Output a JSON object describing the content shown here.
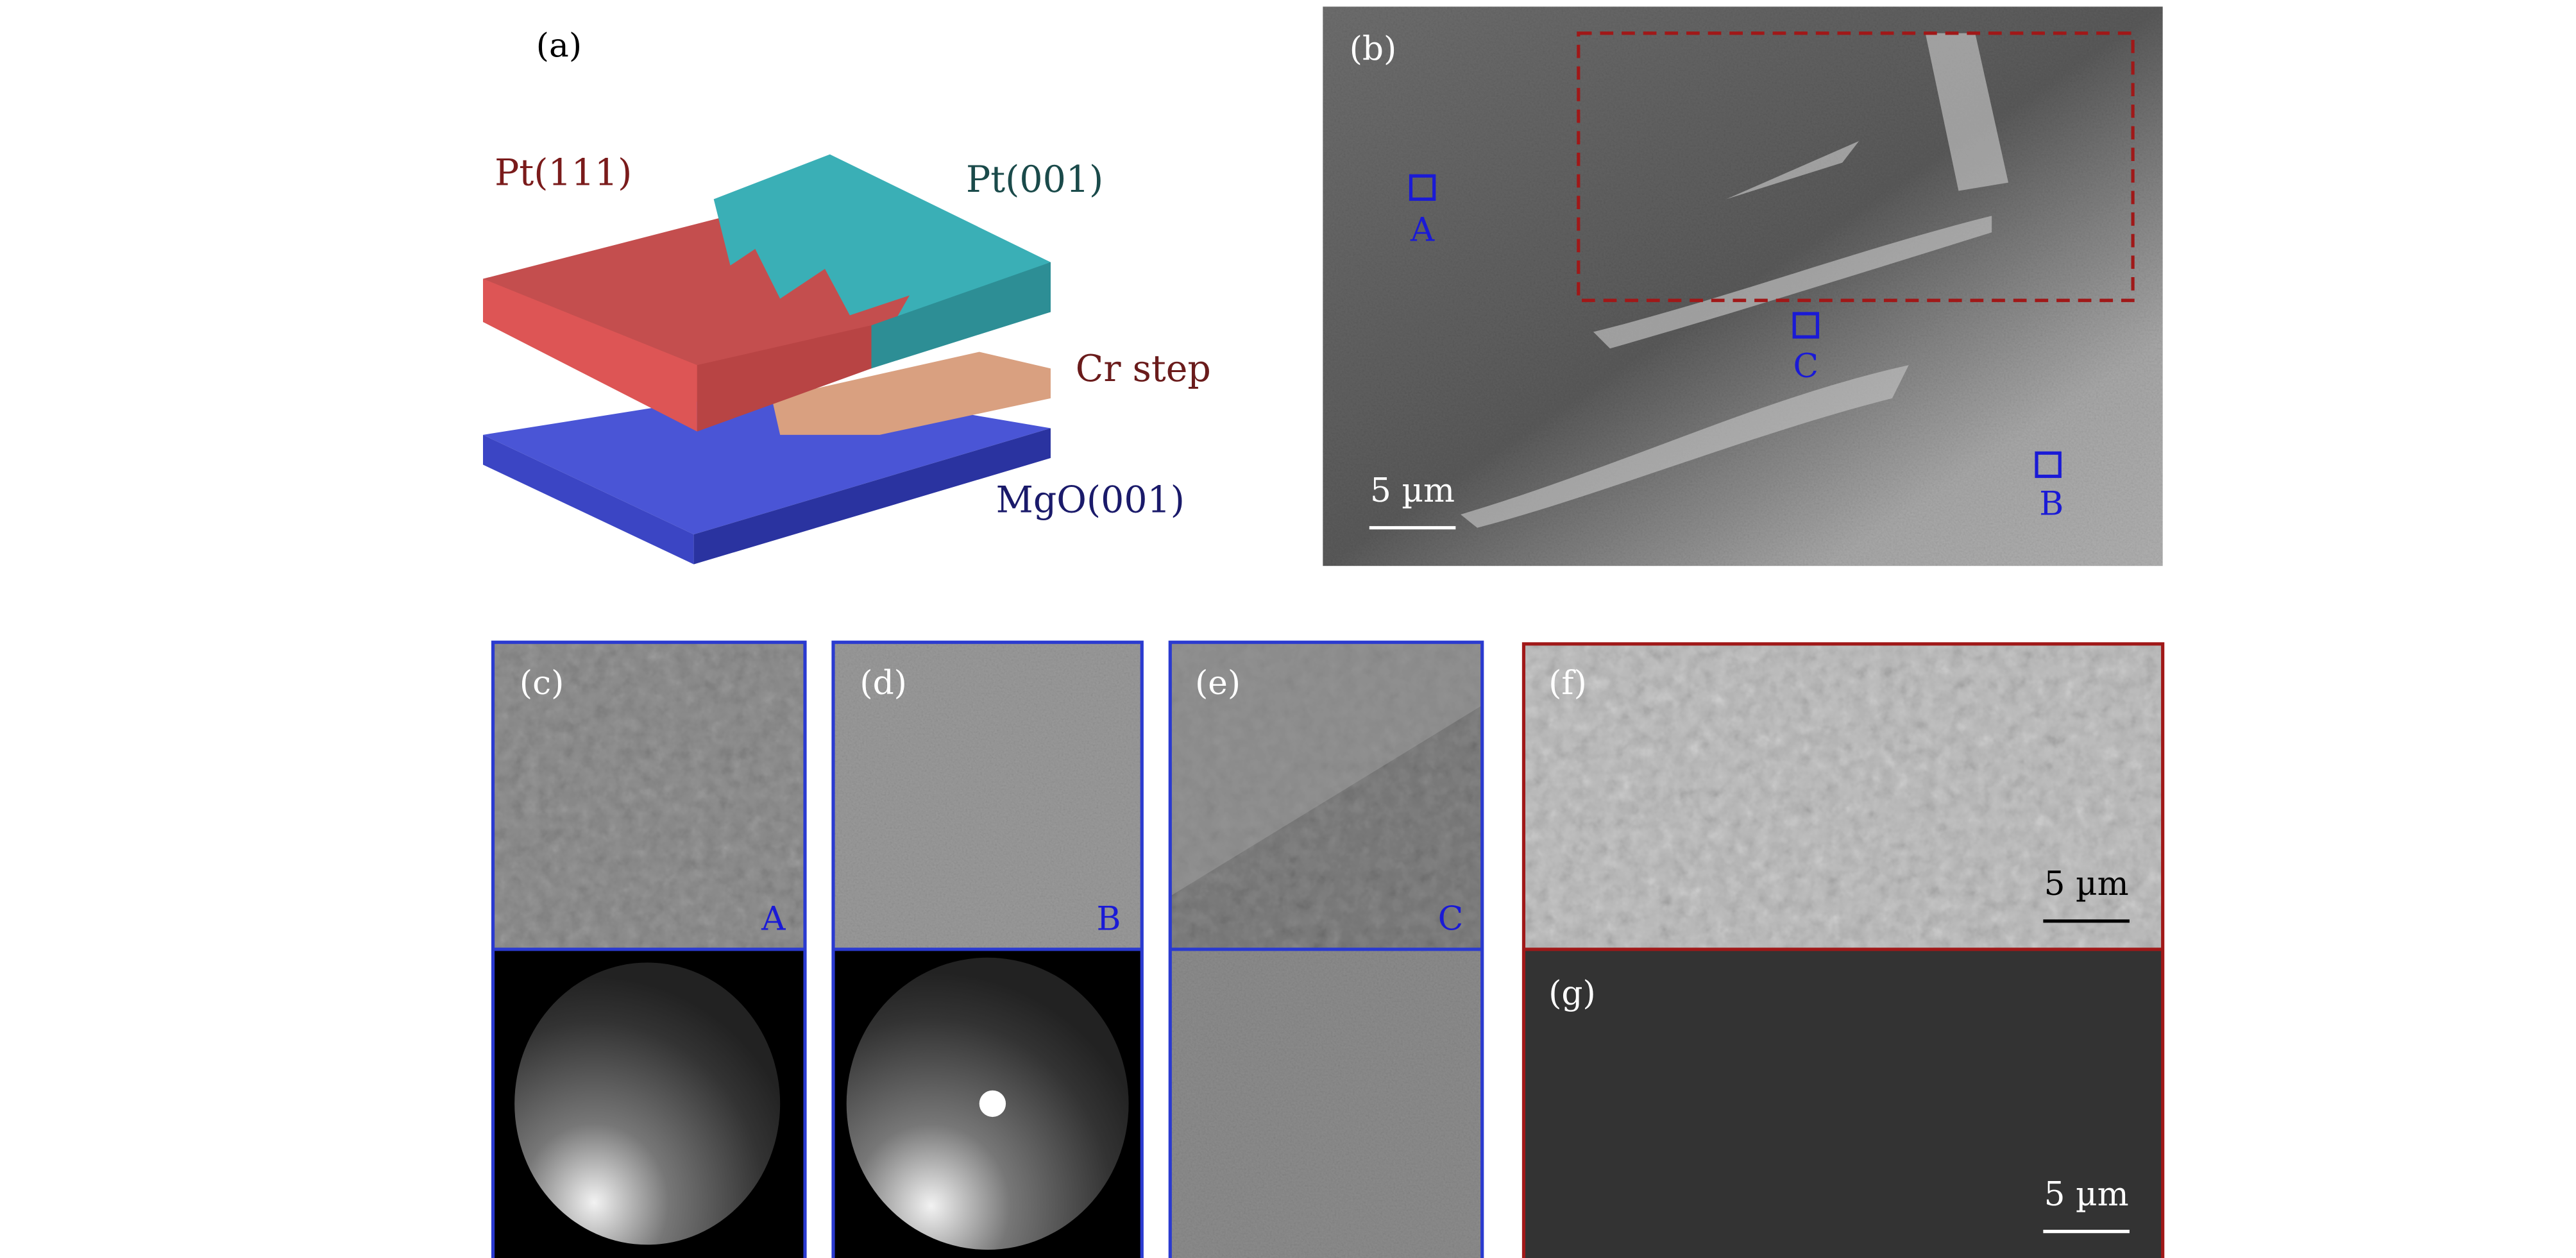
{
  "panels": {
    "a": {
      "label": "(a)",
      "layers": [
        "Pt(111)",
        "Pt(001)",
        "Cr step",
        "MgO(001)"
      ]
    },
    "b": {
      "label": "(b)",
      "markers": [
        "A",
        "C",
        "B"
      ],
      "scale_bar": "5 µm"
    },
    "c": {
      "label": "(c)",
      "marker": "A"
    },
    "d": {
      "label": "(d)",
      "marker": "B"
    },
    "e": {
      "label": "(e)",
      "marker": "C"
    },
    "f": {
      "label": "(f)",
      "scale_bar": "5 µm"
    },
    "g": {
      "label": "(g)",
      "scale_bar": "5 µm"
    }
  }
}
